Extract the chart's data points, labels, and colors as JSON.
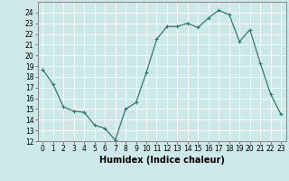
{
  "x": [
    0,
    1,
    2,
    3,
    4,
    5,
    6,
    7,
    8,
    9,
    10,
    11,
    12,
    13,
    14,
    15,
    16,
    17,
    18,
    19,
    20,
    21,
    22,
    23
  ],
  "y": [
    18.7,
    17.3,
    15.2,
    14.8,
    14.7,
    13.5,
    13.2,
    12.1,
    15.0,
    15.6,
    18.4,
    21.5,
    22.7,
    22.7,
    23.0,
    22.6,
    23.5,
    24.2,
    23.8,
    21.3,
    22.4,
    19.3,
    16.4,
    14.5
  ],
  "line_color": "#2e7d6e",
  "marker": "+",
  "marker_size": 3.5,
  "marker_lw": 0.8,
  "line_width": 0.9,
  "bg_color": "#cce8e8",
  "grid_color": "#ffffff",
  "xlabel": "Humidex (Indice chaleur)",
  "ylim": [
    12,
    25
  ],
  "xlim": [
    -0.5,
    23.5
  ],
  "xticks": [
    0,
    1,
    2,
    3,
    4,
    5,
    6,
    7,
    8,
    9,
    10,
    11,
    12,
    13,
    14,
    15,
    16,
    17,
    18,
    19,
    20,
    21,
    22,
    23
  ],
  "yticks": [
    12,
    13,
    14,
    15,
    16,
    17,
    18,
    19,
    20,
    21,
    22,
    23,
    24
  ],
  "tick_label_fontsize": 5.5,
  "xlabel_fontsize": 7.0,
  "spine_color": "#888888"
}
